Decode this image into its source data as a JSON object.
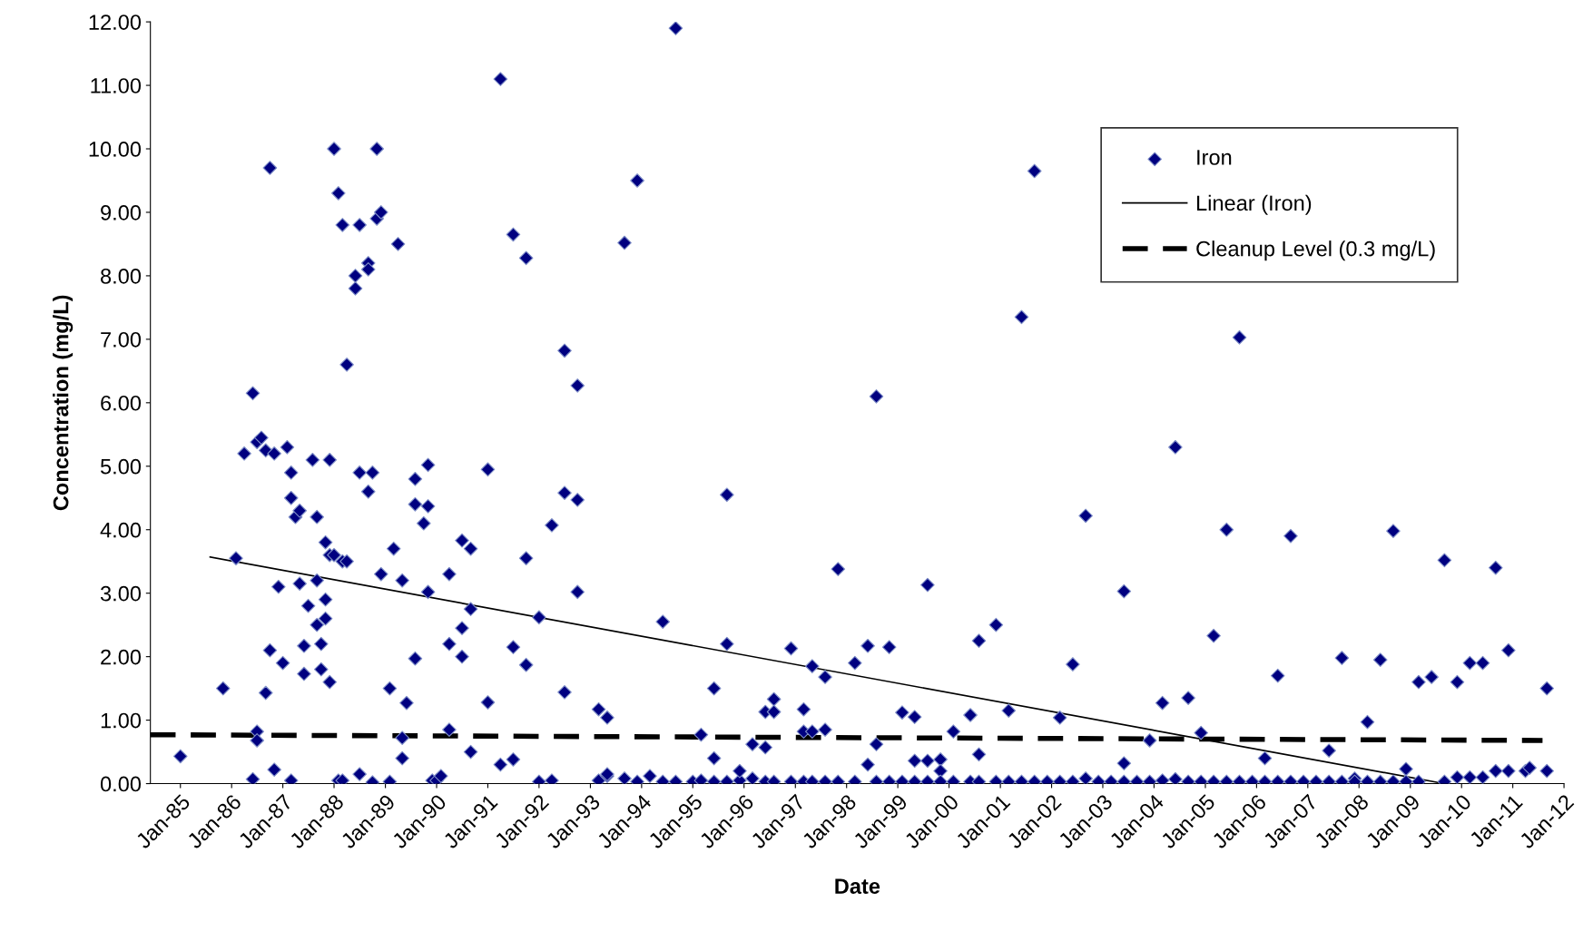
{
  "chart_data": {
    "type": "scatter",
    "xlabel": "Date",
    "ylabel": "Concentration (mg/L)",
    "xlim": [
      "1984-06",
      "2012-01"
    ],
    "xticks": [
      {
        "value": "1985-01",
        "label": "Jan-85"
      },
      {
        "value": "1986-01",
        "label": "Jan-86"
      },
      {
        "value": "1987-01",
        "label": "Jan-87"
      },
      {
        "value": "1988-01",
        "label": "Jan-88"
      },
      {
        "value": "1989-01",
        "label": "Jan-89"
      },
      {
        "value": "1990-01",
        "label": "Jan-90"
      },
      {
        "value": "1991-01",
        "label": "Jan-91"
      },
      {
        "value": "1992-01",
        "label": "Jan-92"
      },
      {
        "value": "1993-01",
        "label": "Jan-93"
      },
      {
        "value": "1994-01",
        "label": "Jan-94"
      },
      {
        "value": "1995-01",
        "label": "Jan-95"
      },
      {
        "value": "1996-01",
        "label": "Jan-96"
      },
      {
        "value": "1997-01",
        "label": "Jan-97"
      },
      {
        "value": "1998-01",
        "label": "Jan-98"
      },
      {
        "value": "1999-01",
        "label": "Jan-99"
      },
      {
        "value": "2000-01",
        "label": "Jan-00"
      },
      {
        "value": "2001-01",
        "label": "Jan-01"
      },
      {
        "value": "2002-01",
        "label": "Jan-02"
      },
      {
        "value": "2003-01",
        "label": "Jan-03"
      },
      {
        "value": "2004-01",
        "label": "Jan-04"
      },
      {
        "value": "2005-01",
        "label": "Jan-05"
      },
      {
        "value": "2006-01",
        "label": "Jan-06"
      },
      {
        "value": "2007-01",
        "label": "Jan-07"
      },
      {
        "value": "2008-01",
        "label": "Jan-08"
      },
      {
        "value": "2009-01",
        "label": "Jan-09"
      },
      {
        "value": "2010-01",
        "label": "Jan-10"
      },
      {
        "value": "2011-01",
        "label": "Jan-11"
      },
      {
        "value": "2012-01",
        "label": "Jan-12"
      }
    ],
    "ylim": [
      0,
      12
    ],
    "yticks": [
      {
        "value": 0,
        "label": "0.00"
      },
      {
        "value": 1,
        "label": "1.00"
      },
      {
        "value": 2,
        "label": "2.00"
      },
      {
        "value": 3,
        "label": "3.00"
      },
      {
        "value": 4,
        "label": "4.00"
      },
      {
        "value": 5,
        "label": "5.00"
      },
      {
        "value": 6,
        "label": "6.00"
      },
      {
        "value": 7,
        "label": "7.00"
      },
      {
        "value": 8,
        "label": "8.00"
      },
      {
        "value": 9,
        "label": "9.00"
      },
      {
        "value": 10,
        "label": "10.00"
      },
      {
        "value": 11,
        "label": "11.00"
      },
      {
        "value": 12,
        "label": "12.00"
      }
    ],
    "grid": false,
    "legend": "top right",
    "series": [
      {
        "name": "Iron",
        "marker": "diamond",
        "color": "#000080",
        "x": [
          "1985-01",
          "1985-11",
          "1986-02",
          "1986-04",
          "1986-06",
          "1986-06",
          "1986-07",
          "1986-08",
          "1986-07",
          "1986-07",
          "1986-09",
          "1986-09",
          "1986-10",
          "1986-10",
          "1986-11",
          "1986-11",
          "1986-12",
          "1987-01",
          "1987-02",
          "1987-03",
          "1987-03",
          "1987-03",
          "1987-04",
          "1987-05",
          "1987-05",
          "1987-06",
          "1987-06",
          "1987-07",
          "1987-08",
          "1987-09",
          "1987-09",
          "1987-09",
          "1987-10",
          "1987-10",
          "1987-11",
          "1987-11",
          "1987-11",
          "1987-12",
          "1987-12",
          "1987-12",
          "1988-01",
          "1988-01",
          "1988-02",
          "1988-02",
          "1988-03",
          "1988-03",
          "1988-03",
          "1988-04",
          "1988-04",
          "1988-06",
          "1988-06",
          "1988-07",
          "1988-07",
          "1988-07",
          "1988-09",
          "1988-09",
          "1988-09",
          "1988-10",
          "1988-10",
          "1988-11",
          "1988-11",
          "1988-12",
          "1988-12",
          "1989-02",
          "1989-02",
          "1989-03",
          "1989-04",
          "1989-05",
          "1989-05",
          "1989-05",
          "1989-06",
          "1989-08",
          "1989-08",
          "1989-08",
          "1989-10",
          "1989-11",
          "1989-11",
          "1989-11",
          "1989-12",
          "1990-01",
          "1990-02",
          "1990-04",
          "1990-04",
          "1990-04",
          "1990-07",
          "1990-07",
          "1990-07",
          "1990-09",
          "1990-09",
          "1990-09",
          "1991-01",
          "1991-01",
          "1991-04",
          "1991-04",
          "1991-07",
          "1991-07",
          "1991-07",
          "1991-10",
          "1991-10",
          "1991-10",
          "1992-01",
          "1992-01",
          "1992-04",
          "1992-04",
          "1992-07",
          "1992-07",
          "1992-07",
          "1992-10",
          "1992-10",
          "1992-10",
          "1993-03",
          "1993-03",
          "1993-05",
          "1993-05",
          "1993-05",
          "1993-09",
          "1993-09",
          "1993-12",
          "1993-12",
          "1994-03",
          "1994-06",
          "1994-06",
          "1994-09",
          "1994-09",
          "1995-01",
          "1995-03",
          "1995-03",
          "1995-06",
          "1995-06",
          "1995-06",
          "1995-09",
          "1995-09",
          "1995-09",
          "1995-12",
          "1995-12",
          "1996-03",
          "1996-03",
          "1996-06",
          "1996-06",
          "1996-06",
          "1996-08",
          "1996-08",
          "1996-08",
          "1996-12",
          "1996-12",
          "1997-03",
          "1997-03",
          "1997-03",
          "1997-05",
          "1997-05",
          "1997-05",
          "1997-08",
          "1997-08",
          "1997-08",
          "1997-11",
          "1997-11",
          "1998-03",
          "1998-03",
          "1998-06",
          "1998-06",
          "1998-08",
          "1998-08",
          "1998-08",
          "1998-11",
          "1998-11",
          "1999-02",
          "1999-02",
          "1999-05",
          "1999-05",
          "1999-05",
          "1999-08",
          "1999-08",
          "1999-08",
          "1999-11",
          "1999-11",
          "1999-11",
          "2000-02",
          "2000-02",
          "2000-06",
          "2000-06",
          "2000-08",
          "2000-08",
          "2000-08",
          "2000-12",
          "2000-12",
          "2001-03",
          "2001-03",
          "2001-06",
          "2001-06",
          "2001-09",
          "2001-09",
          "2001-12",
          "2002-03",
          "2002-03",
          "2002-06",
          "2002-06",
          "2002-09",
          "2002-09",
          "2002-12",
          "2003-03",
          "2003-06",
          "2003-06",
          "2003-06",
          "2003-09",
          "2003-12",
          "2003-12",
          "2004-03",
          "2004-03",
          "2004-06",
          "2004-06",
          "2004-09",
          "2004-09",
          "2004-12",
          "2004-12",
          "2005-03",
          "2005-03",
          "2005-06",
          "2005-06",
          "2005-09",
          "2005-09",
          "2005-12",
          "2006-03",
          "2006-03",
          "2006-06",
          "2006-06",
          "2006-09",
          "2006-09",
          "2006-12",
          "2007-03",
          "2007-06",
          "2007-06",
          "2007-09",
          "2007-09",
          "2007-12",
          "2007-12",
          "2008-03",
          "2008-03",
          "2008-06",
          "2008-06",
          "2008-09",
          "2008-09",
          "2008-12",
          "2008-12",
          "2009-03",
          "2009-03",
          "2009-06",
          "2009-09",
          "2009-09",
          "2009-12",
          "2009-12",
          "2010-03",
          "2010-03",
          "2010-06",
          "2010-06",
          "2010-09",
          "2010-09",
          "2010-12",
          "2010-12",
          "2011-04",
          "2011-05",
          "2011-09",
          "2011-09"
        ],
        "values": [
          0.43,
          1.5,
          3.55,
          5.2,
          6.15,
          0.07,
          5.38,
          5.45,
          0.82,
          0.68,
          1.43,
          5.25,
          9.7,
          2.1,
          0.22,
          5.2,
          3.1,
          1.9,
          5.3,
          4.9,
          4.5,
          0.05,
          4.2,
          3.15,
          4.3,
          1.73,
          2.17,
          2.8,
          5.1,
          3.2,
          2.5,
          4.2,
          1.8,
          2.2,
          3.8,
          2.6,
          2.9,
          3.6,
          5.1,
          1.6,
          10.0,
          3.6,
          9.3,
          0.05,
          8.8,
          3.5,
          0.05,
          6.6,
          3.5,
          7.8,
          8.0,
          8.8,
          4.9,
          0.15,
          8.2,
          4.6,
          8.1,
          4.9,
          0.02,
          10.0,
          8.9,
          3.3,
          9.0,
          1.5,
          0.03,
          3.7,
          8.5,
          3.2,
          0.4,
          0.72,
          1.27,
          1.97,
          4.4,
          4.8,
          4.1,
          5.02,
          4.37,
          3.02,
          0.05,
          0.05,
          0.12,
          0.85,
          2.2,
          3.3,
          3.83,
          2.0,
          2.45,
          3.7,
          2.75,
          0.5,
          4.95,
          1.28,
          0.3,
          11.1,
          0.38,
          8.65,
          2.15,
          3.55,
          1.87,
          8.28,
          2.62,
          0.03,
          0.05,
          4.07,
          6.82,
          4.58,
          1.44,
          6.27,
          4.47,
          3.02,
          1.17,
          0.05,
          0.12,
          1.04,
          0.15,
          8.52,
          0.08,
          9.5,
          0.03,
          0.12,
          2.55,
          0.03,
          11.9,
          0.03,
          0.03,
          0.77,
          0.05,
          1.5,
          0.4,
          0.03,
          4.55,
          2.2,
          0.03,
          0.05,
          0.2,
          0.62,
          0.08,
          0.57,
          1.13,
          0.03,
          1.33,
          1.13,
          0.03,
          2.13,
          0.03,
          1.17,
          0.82,
          0.03,
          1.85,
          0.82,
          0.03,
          1.68,
          0.85,
          0.03,
          3.38,
          0.03,
          1.9,
          0.03,
          2.17,
          0.3,
          6.1,
          0.62,
          0.03,
          2.15,
          0.03,
          1.12,
          0.03,
          1.05,
          0.36,
          0.03,
          3.13,
          0.36,
          0.03,
          0.38,
          0.2,
          0.03,
          0.82,
          0.03,
          1.08,
          0.03,
          2.25,
          0.46,
          0.03,
          2.5,
          0.03,
          1.15,
          0.03,
          7.35,
          0.03,
          9.65,
          0.03,
          0.03,
          1.04,
          0.03,
          1.88,
          0.03,
          4.22,
          0.08,
          0.03,
          0.03,
          3.03,
          0.32,
          0.03,
          0.03,
          0.68,
          0.03,
          1.27,
          0.05,
          5.3,
          0.07,
          1.35,
          0.03,
          0.8,
          0.03,
          2.33,
          0.03,
          4.0,
          0.03,
          7.03,
          0.03,
          0.03,
          0.4,
          0.03,
          1.7,
          0.03,
          3.9,
          0.03,
          0.03,
          0.03,
          0.52,
          0.03,
          1.98,
          0.03,
          0.08,
          0.03,
          0.97,
          0.03,
          1.95,
          0.03,
          3.98,
          0.03,
          0.23,
          0.03,
          1.6,
          0.03,
          1.68,
          3.52,
          0.03,
          1.6,
          0.1,
          1.9,
          0.1,
          1.9,
          0.1,
          3.4,
          0.2,
          2.1,
          0.2,
          0.2,
          0.25,
          1.5,
          0.2
        ]
      },
      {
        "name": "Linear (Iron)",
        "type": "line",
        "color": "#000000",
        "line_style": "solid",
        "x": [
          "1985-08",
          "2009-09"
        ],
        "values": [
          3.57,
          0.0
        ]
      },
      {
        "name": "Cleanup Level (0.3 mg/L)",
        "type": "line",
        "color": "#000000",
        "line_style": "dashed",
        "x": [
          "1984-06",
          "2011-08"
        ],
        "values": [
          0.77,
          0.68
        ]
      }
    ]
  }
}
